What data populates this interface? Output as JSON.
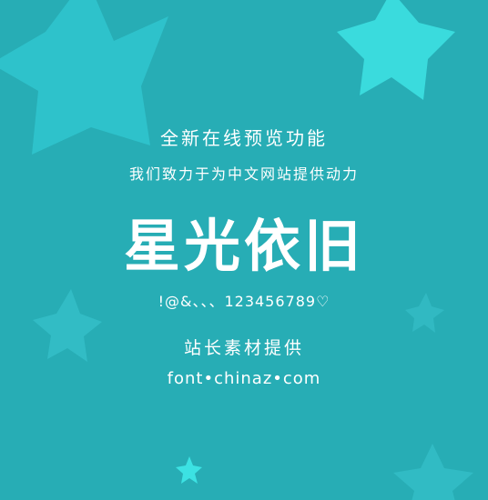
{
  "canvas": {
    "background": "#27adb5",
    "star_colors": [
      "#35d3dc",
      "#41ebeb",
      "#3bc6d0"
    ]
  },
  "lines": {
    "tagline_1": "全新在线预览功能",
    "tagline_2": "我们致力于为中文网站提供动力",
    "font_name": "星光依旧",
    "glyph_sample": "!@&、、、123456789♡",
    "provider": "站长素材提供",
    "site": "font•chinaz•com"
  }
}
